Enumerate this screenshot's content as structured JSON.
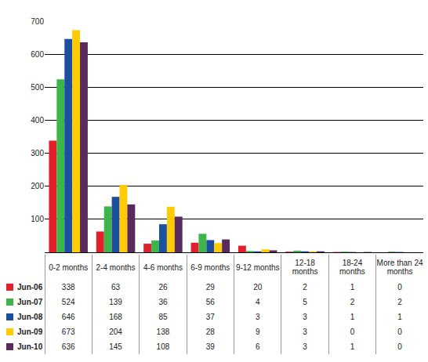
{
  "chart_data": {
    "type": "bar",
    "categories": [
      "0-2 months",
      "2-4 months",
      "4-6 months",
      "6-9 months",
      "9-12 months",
      "12-18 months",
      "18-24 months",
      "More than 24 months"
    ],
    "series": [
      {
        "name": "Jun-06",
        "color": "#e2202c",
        "values": [
          338,
          63,
          26,
          29,
          20,
          2,
          1,
          0
        ]
      },
      {
        "name": "Jun-07",
        "color": "#3db54a",
        "values": [
          524,
          139,
          36,
          56,
          4,
          5,
          2,
          2
        ]
      },
      {
        "name": "Jun-08",
        "color": "#1d4f9f",
        "values": [
          646,
          168,
          85,
          37,
          3,
          3,
          1,
          1
        ]
      },
      {
        "name": "Jun-09",
        "color": "#ffcb05",
        "values": [
          673,
          204,
          138,
          28,
          9,
          3,
          0,
          0
        ]
      },
      {
        "name": "Jun-10",
        "color": "#5b2a5c",
        "values": [
          636,
          145,
          108,
          39,
          6,
          3,
          1,
          0
        ]
      }
    ],
    "ylim": [
      0,
      700
    ],
    "yticks": [
      0,
      100,
      200,
      300,
      400,
      500,
      600,
      700
    ],
    "grid": true
  }
}
